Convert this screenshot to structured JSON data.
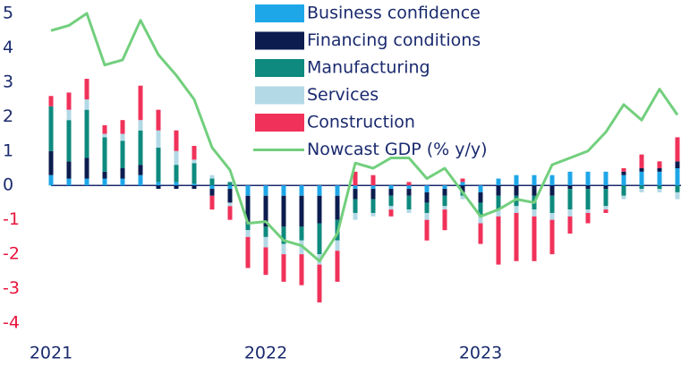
{
  "chart_data": {
    "type": "bar",
    "categories": [
      "2021",
      null,
      null,
      null,
      null,
      null,
      null,
      null,
      null,
      null,
      null,
      null,
      "2022",
      null,
      null,
      null,
      null,
      null,
      null,
      null,
      null,
      null,
      null,
      null,
      "2023",
      null,
      null,
      null,
      null,
      null,
      null,
      null,
      null,
      null,
      null,
      null
    ],
    "stacked": true,
    "ylim": [
      -4,
      5
    ],
    "yticks": [
      -4,
      -3,
      -2,
      -1,
      0,
      1,
      2,
      3,
      4,
      5
    ],
    "series": [
      {
        "name": "Business confidence",
        "color": "#1ea7e8",
        "values": [
          0.3,
          0.2,
          0.2,
          0.2,
          0.2,
          0.3,
          0.1,
          0.1,
          0.05,
          -0.1,
          -0.1,
          -0.3,
          -0.3,
          -0.3,
          -0.3,
          -0.3,
          -0.3,
          -0.1,
          -0.1,
          -0.1,
          -0.1,
          -0.2,
          -0.1,
          0.1,
          -0.2,
          0.2,
          0.3,
          0.3,
          0.3,
          0.4,
          0.4,
          0.4,
          0.3,
          0.4,
          0.4,
          0.5
        ]
      },
      {
        "name": "Financing conditions",
        "color": "#0c1c4f",
        "values": [
          0.7,
          0.5,
          0.6,
          0.2,
          0.3,
          0.3,
          -0.1,
          -0.1,
          -0.1,
          -0.2,
          -0.4,
          -0.8,
          -0.9,
          -0.9,
          -0.9,
          -0.8,
          -0.7,
          -0.3,
          -0.3,
          -0.2,
          -0.2,
          -0.3,
          -0.2,
          -0.2,
          -0.3,
          -0.3,
          -0.3,
          -0.3,
          -0.3,
          -0.1,
          -0.1,
          -0.1,
          0.1,
          0.1,
          0.1,
          0.2
        ]
      },
      {
        "name": "Manufacturing",
        "color": "#0e8a7e",
        "values": [
          1.3,
          1.2,
          1.4,
          1.0,
          0.8,
          1.0,
          1.0,
          0.5,
          0.6,
          0.2,
          0.1,
          -0.2,
          -0.3,
          -0.5,
          -0.4,
          -0.9,
          -0.6,
          -0.4,
          -0.4,
          -0.3,
          -0.4,
          -0.3,
          -0.3,
          -0.1,
          -0.4,
          -0.4,
          -0.3,
          -0.4,
          -0.5,
          -0.6,
          -0.6,
          -0.5,
          -0.3,
          -0.1,
          -0.1,
          -0.2
        ]
      },
      {
        "name": "Services",
        "color": "#b3d9e6",
        "values": [
          0,
          0.3,
          0.3,
          0.1,
          0.2,
          0.3,
          0.5,
          0.4,
          0.1,
          0.1,
          -0.1,
          -0.2,
          -0.3,
          -0.3,
          -0.4,
          -0.3,
          -0.3,
          -0.2,
          -0.1,
          -0.1,
          -0.1,
          -0.2,
          -0.1,
          -0.1,
          -0.2,
          -0.2,
          -0.2,
          -0.2,
          -0.2,
          -0.2,
          -0.1,
          -0.1,
          -0.1,
          -0.1,
          -0.1,
          -0.2
        ]
      },
      {
        "name": "Construction",
        "color": "#f0325a",
        "values": [
          0.3,
          0.5,
          0.6,
          0.25,
          0.4,
          1.0,
          0.6,
          0.6,
          0.4,
          -0.4,
          -0.4,
          -0.9,
          -0.8,
          -0.8,
          -0.9,
          -1.1,
          -0.9,
          0.4,
          0.3,
          -0.2,
          0.1,
          -0.6,
          -0.6,
          0.1,
          -0.6,
          -1.4,
          -1.4,
          -1.3,
          -1.0,
          -0.5,
          -0.3,
          -0.1,
          0.1,
          0.4,
          0.2,
          0.7
        ]
      },
      {
        "name": "Nowcast GDP (% y/y)",
        "type": "line",
        "color": "#72cf7d",
        "values": [
          4.5,
          4.65,
          5.0,
          3.5,
          3.65,
          4.8,
          3.8,
          3.2,
          2.5,
          1.1,
          0.45,
          -1.1,
          -1.05,
          -1.6,
          -1.75,
          -2.2,
          -1.4,
          0.65,
          0.5,
          0.8,
          0.8,
          0.2,
          0.5,
          -0.2,
          -0.9,
          -0.7,
          -0.4,
          -0.5,
          0.6,
          0.8,
          1.0,
          1.55,
          2.35,
          1.9,
          2.8,
          2.05
        ]
      }
    ]
  }
}
